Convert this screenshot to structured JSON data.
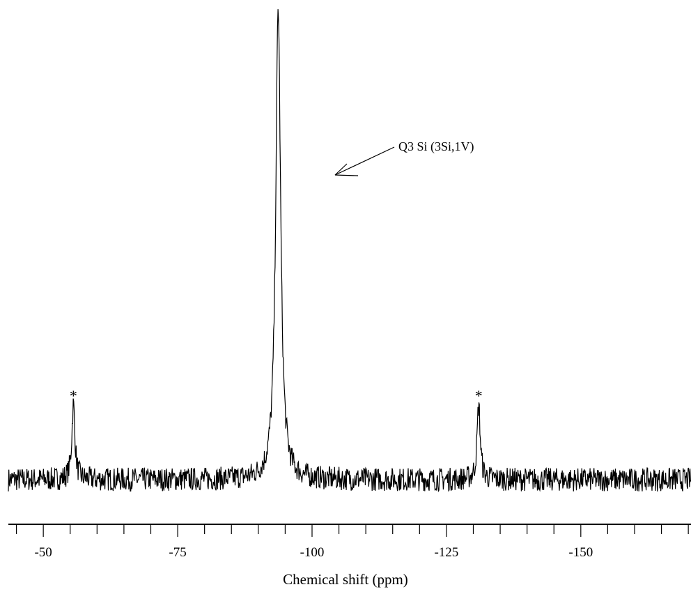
{
  "chart_data": {
    "type": "line",
    "xlabel": "Chemical shift (ppm)",
    "ylabel": "",
    "title": "",
    "xlim": [
      -43.5,
      -170.5
    ],
    "x_reversed": true,
    "y_axis_visible": false,
    "grid": false,
    "major_ticks": [
      -50,
      -75,
      -100,
      -125,
      -150
    ],
    "tick_labels": [
      "-50",
      "-75",
      "-100",
      "-125",
      "-150"
    ],
    "minor_tick_step": 5,
    "baseline_noise": 0.025,
    "peaks": [
      {
        "x": -55.6,
        "height": 0.16,
        "width": 0.35,
        "label": "*"
      },
      {
        "x": -93.7,
        "height": 1.0,
        "width": 0.55,
        "label": ""
      },
      {
        "x": -131.0,
        "height": 0.16,
        "width": 0.35,
        "label": "*"
      }
    ],
    "annotations": [
      {
        "text": "Q3 Si (3Si,1V)",
        "points_to_x": -104.5
      }
    ],
    "line_color": "#000000"
  }
}
